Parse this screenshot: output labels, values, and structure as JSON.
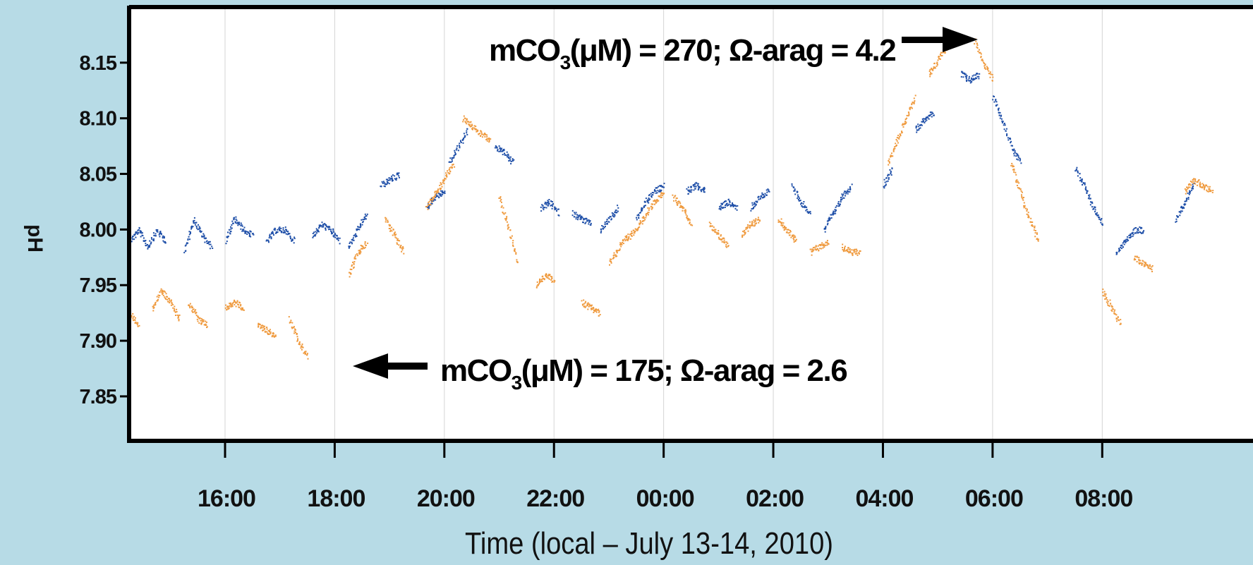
{
  "chart_data": {
    "type": "scatter",
    "title": "",
    "xlabel": "Time (local – July 13-14, 2010)",
    "ylabel": "pH",
    "x_unit": "hours",
    "xlim": [
      "14:15",
      "10:45"
    ],
    "ylim": [
      7.81,
      8.2
    ],
    "yticks": [
      7.85,
      7.9,
      7.95,
      8.0,
      8.05,
      8.1,
      8.15
    ],
    "ytick_labels": [
      "7.85",
      "7.90",
      "7.95",
      "8.00",
      "8.05",
      "8.10",
      "8.15"
    ],
    "xticks": [
      "16:00",
      "18:00",
      "20:00",
      "22:00",
      "00:00",
      "02:00",
      "04:00",
      "06:00",
      "08:00"
    ],
    "vertical_gridlines": true,
    "colors": {
      "series_blue": "#1f4fa8",
      "series_orange": "#ef9a3e",
      "background": "#b7dbe6",
      "plot_area": "#ffffff"
    },
    "series": [
      {
        "color": "#1f4fa8",
        "segments": [
          [
            [
              "14:15",
              7.99
            ],
            [
              "14:25",
              8.0
            ],
            [
              "14:35",
              7.985
            ],
            [
              "14:45",
              8.0
            ],
            [
              "14:55",
              7.99
            ]
          ],
          [
            [
              "15:15",
              7.98
            ],
            [
              "15:25",
              8.01
            ],
            [
              "15:35",
              7.995
            ],
            [
              "15:45",
              7.985
            ]
          ],
          [
            [
              "16:00",
              7.99
            ],
            [
              "16:10",
              8.01
            ],
            [
              "16:20",
              8.0
            ],
            [
              "16:30",
              7.995
            ]
          ],
          [
            [
              "16:45",
              7.99
            ],
            [
              "16:55",
              8.0
            ],
            [
              "17:05",
              8.0
            ],
            [
              "17:15",
              7.99
            ]
          ],
          [
            [
              "17:35",
              7.995
            ],
            [
              "17:45",
              8.005
            ],
            [
              "17:55",
              8.0
            ],
            [
              "18:05",
              7.99
            ]
          ],
          [
            [
              "18:15",
              7.985
            ],
            [
              "18:25",
              8.0
            ],
            [
              "18:35",
              8.015
            ]
          ],
          [
            [
              "18:50",
              8.04
            ],
            [
              "19:00",
              8.045
            ],
            [
              "19:10",
              8.05
            ]
          ],
          [
            [
              "19:40",
              8.02
            ],
            [
              "19:50",
              8.03
            ],
            [
              "20:00",
              8.035
            ]
          ],
          [
            [
              "20:05",
              8.06
            ],
            [
              "20:15",
              8.075
            ],
            [
              "20:25",
              8.09
            ]
          ],
          [
            [
              "20:55",
              8.075
            ],
            [
              "21:05",
              8.07
            ],
            [
              "21:15",
              8.06
            ]
          ],
          [
            [
              "21:45",
              8.02
            ],
            [
              "21:55",
              8.025
            ],
            [
              "22:05",
              8.015
            ]
          ],
          [
            [
              "22:20",
              8.015
            ],
            [
              "22:30",
              8.01
            ],
            [
              "22:40",
              8.005
            ]
          ],
          [
            [
              "22:50",
              8.0
            ],
            [
              "23:00",
              8.01
            ],
            [
              "23:10",
              8.02
            ]
          ],
          [
            [
              "23:30",
              8.01
            ],
            [
              "23:40",
              8.025
            ],
            [
              "23:50",
              8.035
            ],
            [
              "00:00",
              8.04
            ]
          ],
          [
            [
              "00:25",
              8.035
            ],
            [
              "00:35",
              8.04
            ],
            [
              "00:45",
              8.035
            ]
          ],
          [
            [
              "01:00",
              8.02
            ],
            [
              "01:10",
              8.025
            ],
            [
              "01:20",
              8.02
            ]
          ],
          [
            [
              "01:35",
              8.02
            ],
            [
              "01:45",
              8.03
            ],
            [
              "01:55",
              8.035
            ]
          ],
          [
            [
              "02:20",
              8.04
            ],
            [
              "02:30",
              8.025
            ],
            [
              "02:40",
              8.015
            ]
          ],
          [
            [
              "02:55",
              8.0
            ],
            [
              "03:05",
              8.015
            ],
            [
              "03:15",
              8.03
            ],
            [
              "03:25",
              8.04
            ]
          ],
          [
            [
              "04:00",
              8.04
            ],
            [
              "04:10",
              8.055
            ]
          ],
          [
            [
              "04:35",
              8.09
            ],
            [
              "04:45",
              8.1
            ],
            [
              "04:55",
              8.105
            ]
          ],
          [
            [
              "05:25",
              8.14
            ],
            [
              "05:35",
              8.135
            ],
            [
              "05:45",
              8.14
            ]
          ],
          [
            [
              "06:00",
              8.12
            ],
            [
              "06:10",
              8.1
            ],
            [
              "06:20",
              8.075
            ],
            [
              "06:30",
              8.06
            ]
          ],
          [
            [
              "07:30",
              8.055
            ],
            [
              "07:40",
              8.04
            ],
            [
              "07:50",
              8.02
            ],
            [
              "08:00",
              8.005
            ]
          ],
          [
            [
              "08:15",
              7.98
            ],
            [
              "08:25",
              7.99
            ],
            [
              "08:35",
              8.0
            ],
            [
              "08:45",
              8.0
            ]
          ],
          [
            [
              "09:20",
              8.01
            ],
            [
              "09:30",
              8.025
            ],
            [
              "09:40",
              8.04
            ]
          ]
        ]
      },
      {
        "color": "#ef9a3e",
        "segments": [
          [
            [
              "14:15",
              7.925
            ],
            [
              "14:25",
              7.915
            ]
          ],
          [
            [
              "14:40",
              7.93
            ],
            [
              "14:50",
              7.945
            ],
            [
              "15:00",
              7.935
            ],
            [
              "15:10",
              7.92
            ]
          ],
          [
            [
              "15:20",
              7.935
            ],
            [
              "15:30",
              7.92
            ],
            [
              "15:40",
              7.915
            ]
          ],
          [
            [
              "16:00",
              7.93
            ],
            [
              "16:10",
              7.935
            ],
            [
              "16:20",
              7.93
            ]
          ],
          [
            [
              "16:35",
              7.915
            ],
            [
              "16:45",
              7.91
            ],
            [
              "16:55",
              7.905
            ]
          ],
          [
            [
              "17:10",
              7.92
            ],
            [
              "17:20",
              7.9
            ],
            [
              "17:30",
              7.885
            ]
          ],
          [
            [
              "18:15",
              7.96
            ],
            [
              "18:25",
              7.98
            ],
            [
              "18:35",
              7.99
            ]
          ],
          [
            [
              "18:55",
              8.01
            ],
            [
              "19:05",
              7.995
            ],
            [
              "19:15",
              7.98
            ]
          ],
          [
            [
              "19:40",
              8.02
            ],
            [
              "19:55",
              8.04
            ],
            [
              "20:10",
              8.06
            ]
          ],
          [
            [
              "20:20",
              8.1
            ],
            [
              "20:35",
              8.09
            ],
            [
              "20:50",
              8.08
            ]
          ],
          [
            [
              "21:00",
              8.03
            ],
            [
              "21:10",
              8.0
            ],
            [
              "21:20",
              7.97
            ]
          ],
          [
            [
              "21:40",
              7.95
            ],
            [
              "21:50",
              7.96
            ],
            [
              "22:00",
              7.955
            ]
          ],
          [
            [
              "22:30",
              7.935
            ],
            [
              "22:40",
              7.93
            ],
            [
              "22:50",
              7.925
            ]
          ],
          [
            [
              "23:00",
              7.97
            ],
            [
              "23:15",
              7.99
            ],
            [
              "23:30",
              8.0
            ],
            [
              "23:45",
              8.02
            ],
            [
              "00:00",
              8.035
            ]
          ],
          [
            [
              "00:10",
              8.03
            ],
            [
              "00:20",
              8.02
            ],
            [
              "00:30",
              8.005
            ]
          ],
          [
            [
              "00:50",
              8.005
            ],
            [
              "01:00",
              7.995
            ],
            [
              "01:10",
              7.985
            ]
          ],
          [
            [
              "01:25",
              7.995
            ],
            [
              "01:35",
              8.005
            ],
            [
              "01:45",
              8.01
            ]
          ],
          [
            [
              "02:05",
              8.01
            ],
            [
              "02:15",
              8.0
            ],
            [
              "02:25",
              7.99
            ]
          ],
          [
            [
              "02:40",
              7.98
            ],
            [
              "02:50",
              7.985
            ],
            [
              "03:00",
              7.99
            ]
          ],
          [
            [
              "03:15",
              7.985
            ],
            [
              "03:25",
              7.98
            ],
            [
              "03:35",
              7.98
            ]
          ],
          [
            [
              "04:05",
              8.06
            ],
            [
              "04:20",
              8.09
            ],
            [
              "04:35",
              8.12
            ]
          ],
          [
            [
              "04:50",
              8.14
            ],
            [
              "05:05",
              8.16
            ],
            [
              "05:15",
              8.17
            ]
          ],
          [
            [
              "05:40",
              8.17
            ],
            [
              "05:50",
              8.15
            ],
            [
              "06:00",
              8.135
            ]
          ],
          [
            [
              "06:20",
              8.06
            ],
            [
              "06:35",
              8.02
            ],
            [
              "06:50",
              7.99
            ]
          ],
          [
            [
              "08:00",
              7.945
            ],
            [
              "08:10",
              7.93
            ],
            [
              "08:20",
              7.915
            ]
          ],
          [
            [
              "08:35",
              7.975
            ],
            [
              "08:45",
              7.97
            ],
            [
              "08:55",
              7.965
            ]
          ],
          [
            [
              "09:30",
              8.035
            ],
            [
              "09:40",
              8.045
            ],
            [
              "09:50",
              8.04
            ],
            [
              "10:00",
              8.035
            ]
          ]
        ]
      }
    ],
    "annotations": [
      {
        "id": "high",
        "text_prefix": "mCO",
        "subscript": "3",
        "text_suffix": "(μM) = 270; Ω-arag = 4.2",
        "arrow": "right",
        "points_to": [
          "05:10",
          8.16
        ]
      },
      {
        "id": "low",
        "text_prefix": "mCO",
        "subscript": "3",
        "text_suffix": "(μM) = 175; Ω-arag = 2.6",
        "arrow": "left",
        "points_to": [
          "18:00",
          7.88
        ]
      }
    ]
  }
}
